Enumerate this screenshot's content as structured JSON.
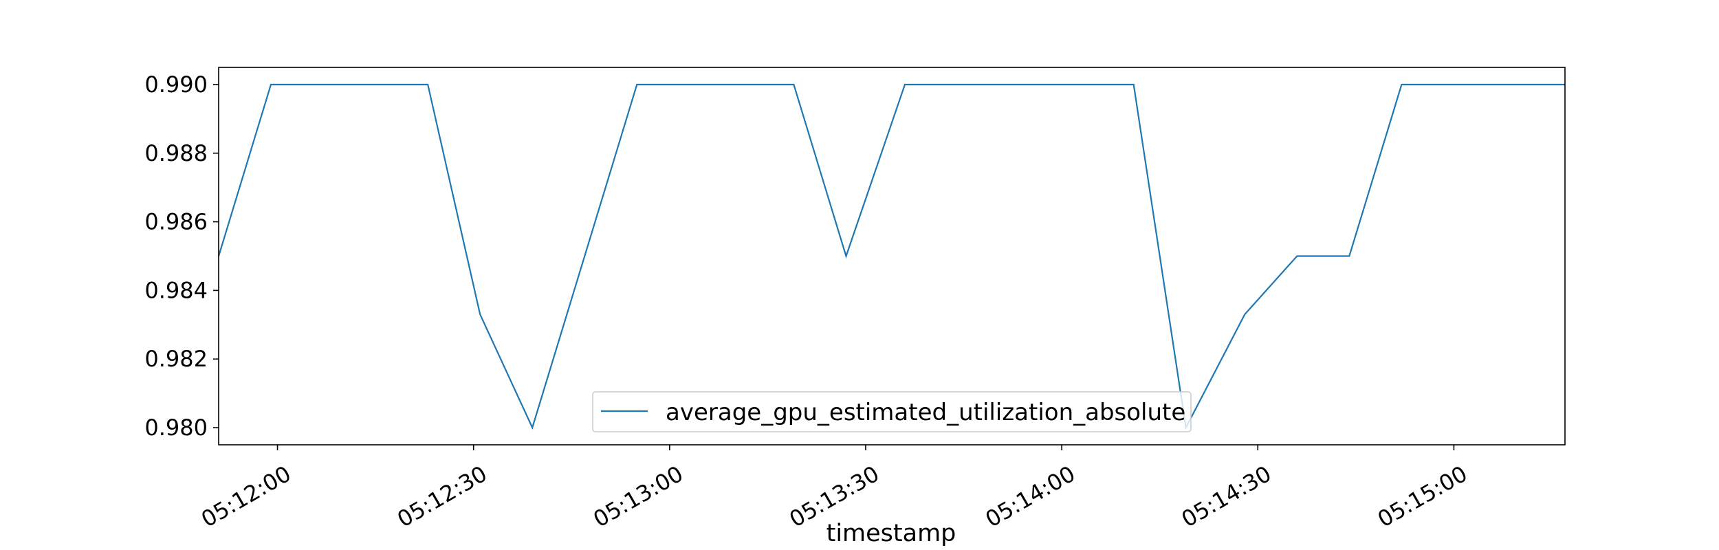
{
  "chart_data": {
    "type": "line",
    "title": "",
    "xlabel": "timestamp",
    "ylabel": "",
    "x": [
      "05:11:51",
      "05:11:59",
      "05:12:23",
      "05:12:31",
      "05:12:39",
      "05:12:55",
      "05:13:19",
      "05:13:27",
      "05:13:36",
      "05:14:11",
      "05:14:19",
      "05:14:28",
      "05:14:36",
      "05:14:44",
      "05:14:52",
      "05:15:17"
    ],
    "series": [
      {
        "name": "average_gpu_estimated_utilization_absolute",
        "color": "#1f77b4",
        "values": [
          0.985,
          0.99,
          0.99,
          0.9833,
          0.98,
          0.99,
          0.99,
          0.985,
          0.99,
          0.99,
          0.98,
          0.9833,
          0.985,
          0.985,
          0.99,
          0.99
        ]
      }
    ],
    "xticks": [
      "05:12:00",
      "05:12:30",
      "05:13:00",
      "05:13:30",
      "05:14:00",
      "05:14:30",
      "05:15:00"
    ],
    "yticks": [
      "0.980",
      "0.982",
      "0.984",
      "0.986",
      "0.988",
      "0.990"
    ],
    "xlim": [
      "05:11:51",
      "05:15:17"
    ],
    "ylim": [
      0.9795,
      0.9905
    ],
    "grid": false,
    "legend": "lower-center"
  }
}
